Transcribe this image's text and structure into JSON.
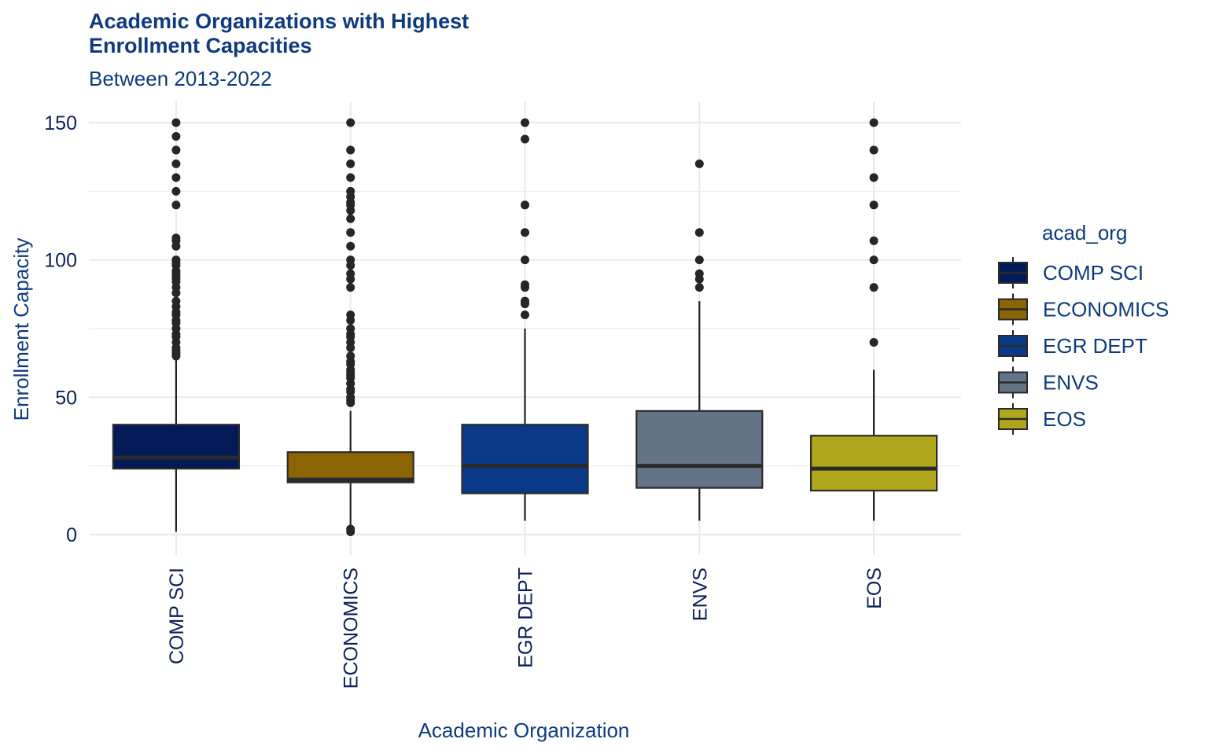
{
  "chart_data": {
    "type": "box",
    "title_line1": "Academic Organizations with Highest",
    "title_line2": "Enrollment Capacities",
    "subtitle": "Between 2013-2022",
    "xlabel": "Academic Organization",
    "ylabel": "Enrollment Capacity",
    "ylim": [
      -7,
      157
    ],
    "yticks": [
      0,
      50,
      100,
      150
    ],
    "grid": true,
    "legend": {
      "title": "acad_org",
      "position": "right"
    },
    "text_color": "#0d3a80",
    "tick_color": "#0c1f5c",
    "categories": [
      "COMP SCI",
      "ECONOMICS",
      "EGR DEPT",
      "ENVS",
      "EOS"
    ],
    "series": [
      {
        "name": "COMP SCI",
        "color": "#021a57",
        "q1": 24,
        "median": 28,
        "q3": 40,
        "whisker_low": 1,
        "whisker_high": 64,
        "outliers": [
          65,
          66,
          67,
          68,
          70,
          72,
          73,
          75,
          77,
          78,
          80,
          81,
          83,
          85,
          88,
          90,
          92,
          93,
          94,
          95,
          96,
          98,
          99,
          100,
          105,
          107,
          108,
          120,
          125,
          130,
          135,
          140,
          145,
          150
        ]
      },
      {
        "name": "ECONOMICS",
        "color": "#8b6404",
        "q1": 19,
        "median": 20,
        "q3": 30,
        "whisker_low": 1,
        "whisker_high": 45,
        "outliers": [
          1,
          2,
          48,
          49,
          50,
          52,
          53,
          55,
          57,
          58,
          59,
          60,
          62,
          63,
          65,
          68,
          70,
          72,
          73,
          75,
          78,
          80,
          90,
          93,
          95,
          98,
          100,
          105,
          110,
          115,
          118,
          120,
          121,
          123,
          125,
          130,
          135,
          140,
          150
        ]
      },
      {
        "name": "EGR DEPT",
        "color": "#0a3a87",
        "q1": 15,
        "median": 25,
        "q3": 40,
        "whisker_low": 5,
        "whisker_high": 75,
        "outliers": [
          80,
          84,
          85,
          90,
          91,
          100,
          110,
          120,
          144,
          150
        ]
      },
      {
        "name": "ENVS",
        "color": "#637487",
        "q1": 17,
        "median": 25,
        "q3": 45,
        "whisker_low": 5,
        "whisker_high": 85,
        "outliers": [
          90,
          93,
          95,
          100,
          110,
          135
        ]
      },
      {
        "name": "EOS",
        "color": "#b0a61b",
        "q1": 16,
        "median": 24,
        "q3": 36,
        "whisker_low": 5,
        "whisker_high": 60,
        "outliers": [
          70,
          90,
          100,
          107,
          120,
          130,
          140,
          150
        ]
      }
    ]
  }
}
